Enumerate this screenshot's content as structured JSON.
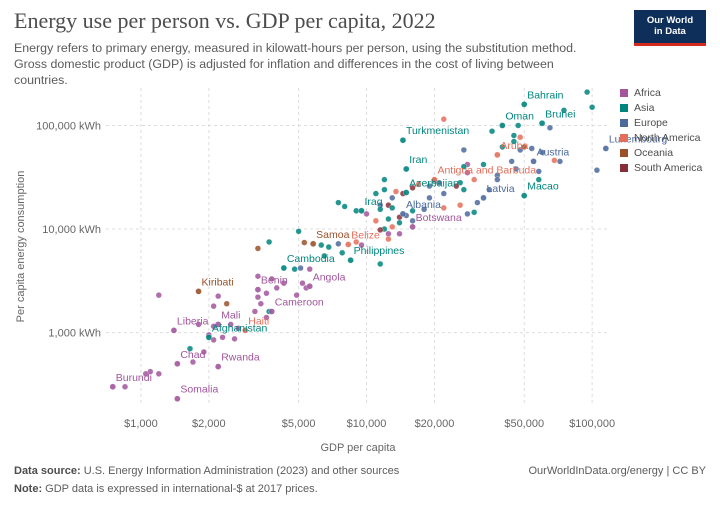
{
  "header": {
    "title": "Energy use per person vs. GDP per capita, 2022",
    "subtitle": "Energy refers to primary energy, measured in kilowatt-hours per person, using the substitution method. Gross domestic product (GDP) is adjusted for inflation and differences in the cost of living between countries.",
    "logo_line1": "Our World",
    "logo_line2": "in Data"
  },
  "footer": {
    "source_label": "Data source:",
    "source_text": "U.S. Energy Information Administration (2023) and other sources",
    "note_label": "Note:",
    "note_text": "GDP data is expressed in international-$ at 2017 prices.",
    "url": "OurWorldInData.org/energy | CC BY"
  },
  "colors": {
    "Africa": "#a2559c",
    "Asia": "#00847e",
    "Europe": "#4c6a9c",
    "North America": "#e56e5a",
    "Oceania": "#9a5129",
    "South America": "#883039",
    "grid": "#dddddd"
  },
  "legend": [
    "Africa",
    "Asia",
    "Europe",
    "North America",
    "Oceania",
    "South America"
  ],
  "chart_data": {
    "type": "scatter",
    "xlabel": "GDP per capita",
    "ylabel": "Per capita energy consumption",
    "xscale": "log",
    "yscale": "log",
    "xlim": [
      700,
      120000
    ],
    "ylim": [
      200,
      230000
    ],
    "grid": "dashed",
    "legend_position": "right",
    "xticks": [
      {
        "v": 1000,
        "label": "$1,000"
      },
      {
        "v": 2000,
        "label": "$2,000"
      },
      {
        "v": 5000,
        "label": "$5,000"
      },
      {
        "v": 10000,
        "label": "$10,000"
      },
      {
        "v": 20000,
        "label": "$20,000"
      },
      {
        "v": 50000,
        "label": "$50,000"
      },
      {
        "v": 100000,
        "label": "$100,000"
      }
    ],
    "yticks": [
      {
        "v": 1000,
        "label": "1,000 kWh"
      },
      {
        "v": 10000,
        "label": "10,000 kWh"
      },
      {
        "v": 100000,
        "label": "100,000 kWh"
      }
    ],
    "labeled_points": [
      {
        "name": "Bahrain",
        "region": "Asia",
        "x": 50000,
        "y": 160000
      },
      {
        "name": "Brunei",
        "region": "Asia",
        "x": 60000,
        "y": 105000
      },
      {
        "name": "Oman",
        "region": "Asia",
        "x": 40000,
        "y": 100000
      },
      {
        "name": "Turkmenistan",
        "region": "Asia",
        "x": 14500,
        "y": 72000
      },
      {
        "name": "Luxembourg",
        "region": "Europe",
        "x": 115000,
        "y": 60000
      },
      {
        "name": "Aruba",
        "region": "North America",
        "x": 38000,
        "y": 52000
      },
      {
        "name": "Austria",
        "region": "Europe",
        "x": 55000,
        "y": 45000
      },
      {
        "name": "Iran",
        "region": "Asia",
        "x": 15000,
        "y": 38000
      },
      {
        "name": "Antigua and Barbuda",
        "region": "North America",
        "x": 20000,
        "y": 30000
      },
      {
        "name": "Macao",
        "region": "Asia",
        "x": 50000,
        "y": 21000
      },
      {
        "name": "Azerbaijan",
        "region": "Asia",
        "x": 15000,
        "y": 22500
      },
      {
        "name": "Latvia",
        "region": "Europe",
        "x": 33000,
        "y": 20000
      },
      {
        "name": "Iraq",
        "region": "Asia",
        "x": 9500,
        "y": 15000
      },
      {
        "name": "Albania",
        "region": "Europe",
        "x": 14500,
        "y": 14000
      },
      {
        "name": "Botswana",
        "region": "Africa",
        "x": 16000,
        "y": 10500
      },
      {
        "name": "Samoa",
        "region": "Oceania",
        "x": 5800,
        "y": 7200
      },
      {
        "name": "Belize",
        "region": "North America",
        "x": 8300,
        "y": 7100
      },
      {
        "name": "Philippines",
        "region": "Asia",
        "x": 8500,
        "y": 5000
      },
      {
        "name": "Cambodia",
        "region": "Asia",
        "x": 4300,
        "y": 4200
      },
      {
        "name": "Angola",
        "region": "Africa",
        "x": 5600,
        "y": 2800
      },
      {
        "name": "Benin",
        "region": "Africa",
        "x": 3300,
        "y": 2600
      },
      {
        "name": "Kiribati",
        "region": "Oceania",
        "x": 1800,
        "y": 2500
      },
      {
        "name": "Cameroon",
        "region": "Africa",
        "x": 3800,
        "y": 1600
      },
      {
        "name": "Mali",
        "region": "Africa",
        "x": 2200,
        "y": 1200
      },
      {
        "name": "Haiti",
        "region": "North America",
        "x": 2900,
        "y": 1050
      },
      {
        "name": "Liberia",
        "region": "Africa",
        "x": 1400,
        "y": 1050
      },
      {
        "name": "Afghanistan",
        "region": "Asia",
        "x": 2000,
        "y": 900
      },
      {
        "name": "Chad",
        "region": "Africa",
        "x": 1450,
        "y": 500
      },
      {
        "name": "Rwanda",
        "region": "Africa",
        "x": 2200,
        "y": 470
      },
      {
        "name": "Burundi",
        "region": "Africa",
        "x": 750,
        "y": 300
      },
      {
        "name": "Somalia",
        "region": "Africa",
        "x": 1450,
        "y": 230
      }
    ],
    "points": [
      {
        "region": "Asia",
        "x": 95000,
        "y": 210000
      },
      {
        "region": "Asia",
        "x": 75000,
        "y": 140000
      },
      {
        "region": "Asia",
        "x": 100000,
        "y": 150000
      },
      {
        "region": "Asia",
        "x": 47000,
        "y": 100000
      },
      {
        "region": "Europe",
        "x": 65000,
        "y": 95000
      },
      {
        "region": "Asia",
        "x": 45000,
        "y": 80000
      },
      {
        "region": "Asia",
        "x": 45000,
        "y": 70000
      },
      {
        "region": "Asia",
        "x": 36000,
        "y": 88000
      },
      {
        "region": "North America",
        "x": 22000,
        "y": 115000
      },
      {
        "region": "North America",
        "x": 48000,
        "y": 77000
      },
      {
        "region": "Europe",
        "x": 48000,
        "y": 58000
      },
      {
        "region": "Europe",
        "x": 54000,
        "y": 60000
      },
      {
        "region": "Europe",
        "x": 60000,
        "y": 55000
      },
      {
        "region": "Asia",
        "x": 40000,
        "y": 62000
      },
      {
        "region": "Oceania",
        "x": 50000,
        "y": 62000
      },
      {
        "region": "Europe",
        "x": 27000,
        "y": 58000
      },
      {
        "region": "Europe",
        "x": 72000,
        "y": 45000
      },
      {
        "region": "Europe",
        "x": 44000,
        "y": 45000
      },
      {
        "region": "Africa",
        "x": 28000,
        "y": 42000
      },
      {
        "region": "Asia",
        "x": 33000,
        "y": 42000
      },
      {
        "region": "Asia",
        "x": 27000,
        "y": 40000
      },
      {
        "region": "Africa",
        "x": 28000,
        "y": 35000
      },
      {
        "region": "Europe",
        "x": 46000,
        "y": 38000
      },
      {
        "region": "Europe",
        "x": 58000,
        "y": 36000
      },
      {
        "region": "Europe",
        "x": 38000,
        "y": 33000
      },
      {
        "region": "Asia",
        "x": 58000,
        "y": 30000
      },
      {
        "region": "Europe",
        "x": 105000,
        "y": 37000
      },
      {
        "region": "North America",
        "x": 68000,
        "y": 46000
      },
      {
        "region": "North America",
        "x": 30000,
        "y": 30000
      },
      {
        "region": "Europe",
        "x": 38000,
        "y": 30000
      },
      {
        "region": "Asia",
        "x": 26000,
        "y": 28000
      },
      {
        "region": "Asia",
        "x": 12000,
        "y": 30000
      },
      {
        "region": "Asia",
        "x": 20000,
        "y": 29000
      },
      {
        "region": "Europe",
        "x": 21000,
        "y": 28000
      },
      {
        "region": "North America",
        "x": 17000,
        "y": 27000
      },
      {
        "region": "Europe",
        "x": 19000,
        "y": 26000
      },
      {
        "region": "South America",
        "x": 25000,
        "y": 26000
      },
      {
        "region": "Asia",
        "x": 12000,
        "y": 24000
      },
      {
        "region": "Asia",
        "x": 27000,
        "y": 24000
      },
      {
        "region": "South America",
        "x": 16000,
        "y": 25000
      },
      {
        "region": "Europe",
        "x": 22000,
        "y": 22000
      },
      {
        "region": "South America",
        "x": 14500,
        "y": 22000
      },
      {
        "region": "Europe",
        "x": 19000,
        "y": 20000
      },
      {
        "region": "Europe",
        "x": 13000,
        "y": 20000
      },
      {
        "region": "North America",
        "x": 13500,
        "y": 23000
      },
      {
        "region": "Asia",
        "x": 11000,
        "y": 22000
      },
      {
        "region": "Europe",
        "x": 35000,
        "y": 24000
      },
      {
        "region": "North America",
        "x": 26000,
        "y": 17000
      },
      {
        "region": "Europe",
        "x": 31000,
        "y": 18000
      },
      {
        "region": "Asia",
        "x": 30000,
        "y": 14500
      },
      {
        "region": "Europe",
        "x": 28000,
        "y": 14000
      },
      {
        "region": "Asia",
        "x": 7500,
        "y": 18000
      },
      {
        "region": "Asia",
        "x": 8000,
        "y": 16500
      },
      {
        "region": "Asia",
        "x": 9000,
        "y": 15000
      },
      {
        "region": "Africa",
        "x": 10000,
        "y": 14000
      },
      {
        "region": "Europe",
        "x": 11500,
        "y": 17000
      },
      {
        "region": "South America",
        "x": 12500,
        "y": 17000
      },
      {
        "region": "Asia",
        "x": 13000,
        "y": 16000
      },
      {
        "region": "Asia",
        "x": 11500,
        "y": 15500
      },
      {
        "region": "Asia",
        "x": 16000,
        "y": 15000
      },
      {
        "region": "Europe",
        "x": 15000,
        "y": 13500
      },
      {
        "region": "Europe",
        "x": 18000,
        "y": 15500
      },
      {
        "region": "North America",
        "x": 22000,
        "y": 16000
      },
      {
        "region": "South America",
        "x": 14000,
        "y": 13000
      },
      {
        "region": "Asia",
        "x": 12500,
        "y": 12500
      },
      {
        "region": "Asia",
        "x": 14000,
        "y": 11500
      },
      {
        "region": "North America",
        "x": 13000,
        "y": 10500
      },
      {
        "region": "North America",
        "x": 11000,
        "y": 12000
      },
      {
        "region": "Europe",
        "x": 16000,
        "y": 12000
      },
      {
        "region": "Africa",
        "x": 14000,
        "y": 9000
      },
      {
        "region": "Asia",
        "x": 12000,
        "y": 10000
      },
      {
        "region": "South America",
        "x": 11500,
        "y": 9800
      },
      {
        "region": "North America",
        "x": 12500,
        "y": 8000
      },
      {
        "region": "Africa",
        "x": 12500,
        "y": 9000
      },
      {
        "region": "Asia",
        "x": 3700,
        "y": 7500
      },
      {
        "region": "Asia",
        "x": 5000,
        "y": 9500
      },
      {
        "region": "Oceania",
        "x": 3300,
        "y": 6500
      },
      {
        "region": "Oceania",
        "x": 5300,
        "y": 7400
      },
      {
        "region": "Asia",
        "x": 6300,
        "y": 7000
      },
      {
        "region": "Asia",
        "x": 6800,
        "y": 6700
      },
      {
        "region": "Europe",
        "x": 7500,
        "y": 7200
      },
      {
        "region": "North America",
        "x": 9000,
        "y": 7500
      },
      {
        "region": "Africa",
        "x": 9500,
        "y": 7000
      },
      {
        "region": "Asia",
        "x": 6500,
        "y": 5500
      },
      {
        "region": "Asia",
        "x": 7800,
        "y": 5900
      },
      {
        "region": "Asia",
        "x": 11500,
        "y": 4600
      },
      {
        "region": "Europe",
        "x": 5100,
        "y": 4200
      },
      {
        "region": "Asia",
        "x": 4800,
        "y": 4100
      },
      {
        "region": "Africa",
        "x": 5600,
        "y": 4100
      },
      {
        "region": "Africa",
        "x": 3300,
        "y": 3500
      },
      {
        "region": "Africa",
        "x": 3800,
        "y": 3300
      },
      {
        "region": "Africa",
        "x": 4300,
        "y": 3000
      },
      {
        "region": "Africa",
        "x": 5200,
        "y": 3000
      },
      {
        "region": "Africa",
        "x": 5400,
        "y": 2700
      },
      {
        "region": "Africa",
        "x": 4000,
        "y": 2700
      },
      {
        "region": "Africa",
        "x": 3600,
        "y": 2400
      },
      {
        "region": "Africa",
        "x": 4900,
        "y": 2300
      },
      {
        "region": "Africa",
        "x": 3300,
        "y": 2200
      },
      {
        "region": "Africa",
        "x": 2200,
        "y": 2250
      },
      {
        "region": "Africa",
        "x": 1200,
        "y": 2300
      },
      {
        "region": "Oceania",
        "x": 2400,
        "y": 1900
      },
      {
        "region": "Africa",
        "x": 2100,
        "y": 1800
      },
      {
        "region": "Africa",
        "x": 3400,
        "y": 1900
      },
      {
        "region": "Asia",
        "x": 3700,
        "y": 1600
      },
      {
        "region": "Africa",
        "x": 3200,
        "y": 1600
      },
      {
        "region": "Africa",
        "x": 3600,
        "y": 1400
      },
      {
        "region": "Africa",
        "x": 2500,
        "y": 1200
      },
      {
        "region": "Africa",
        "x": 2100,
        "y": 1150
      },
      {
        "region": "Africa",
        "x": 2700,
        "y": 1100
      },
      {
        "region": "Africa",
        "x": 1800,
        "y": 1200
      },
      {
        "region": "Africa",
        "x": 2000,
        "y": 950
      },
      {
        "region": "Africa",
        "x": 2300,
        "y": 900
      },
      {
        "region": "Africa",
        "x": 2600,
        "y": 870
      },
      {
        "region": "Africa",
        "x": 2100,
        "y": 850
      },
      {
        "region": "Asia",
        "x": 1650,
        "y": 700
      },
      {
        "region": "Africa",
        "x": 1900,
        "y": 650
      },
      {
        "region": "Africa",
        "x": 1700,
        "y": 520
      },
      {
        "region": "Africa",
        "x": 1100,
        "y": 420
      },
      {
        "region": "Africa",
        "x": 1200,
        "y": 400
      },
      {
        "region": "Africa",
        "x": 1050,
        "y": 400
      },
      {
        "region": "Africa",
        "x": 850,
        "y": 300
      }
    ]
  }
}
